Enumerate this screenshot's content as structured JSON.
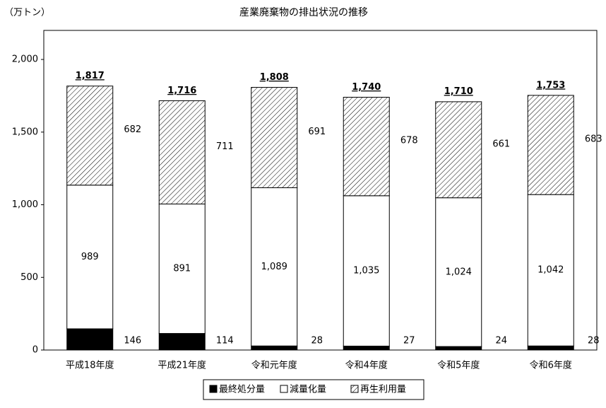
{
  "chart_data": {
    "type": "stacked_bar",
    "title": "産業廃棄物の排出状況の推移",
    "y_label": "（万トン）",
    "categories": [
      "平成18年度",
      "平成21年度",
      "令和元年度",
      "令和4年度",
      "令和5年度",
      "令和6年度"
    ],
    "series": [
      {
        "name": "最終処分量",
        "color": "#000000",
        "values": [
          146,
          114,
          28,
          27,
          24,
          28
        ]
      },
      {
        "name": "減量化量",
        "color": "#ffffff",
        "values": [
          989,
          891,
          1089,
          1035,
          1024,
          1042
        ],
        "value_labels": [
          "989",
          "891",
          "1,089",
          "1,035",
          "1,024",
          "1,042"
        ]
      },
      {
        "name": "再生利用量",
        "color": "#ffffff",
        "hatch": true,
        "values": [
          682,
          711,
          691,
          678,
          661,
          683
        ]
      }
    ],
    "totals": {
      "values": [
        1817,
        1716,
        1808,
        1740,
        1710,
        1753
      ],
      "value_labels": [
        "1,817",
        "1,716",
        "1,808",
        "1,740",
        "1,710",
        "1,753"
      ]
    },
    "ylim": [
      0,
      2200
    ],
    "yticks": [
      0,
      500,
      {
        "value": 1000,
        "label": "1,000"
      },
      {
        "value": 1500,
        "label": "1,500"
      },
      {
        "value": 2000,
        "label": "2,000"
      }
    ],
    "grid": false,
    "legend": "bottom"
  }
}
